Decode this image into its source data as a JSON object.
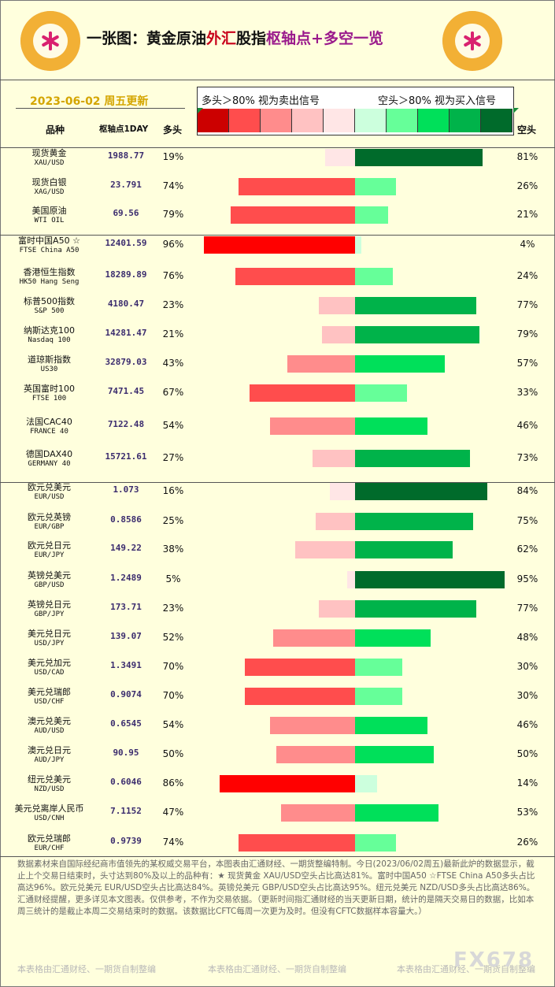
{
  "header": {
    "title_a": "一张图：黄金原油",
    "title_b": "外汇",
    "title_c": "股指",
    "title_d": "枢轴点+多空一览",
    "date": "2023-06-02 周五更新",
    "legend_left": "多头＞80% 视为卖出信号",
    "legend_right": "空头＞80% 视为买入信号",
    "col_name": "品种",
    "col_pivot": "枢轴点1DAY",
    "col_long": "多头",
    "col_short": "空头"
  },
  "colors": {
    "legend": [
      "#cc0000",
      "#ff4d4d",
      "#ff8c8c",
      "#ffc2c2",
      "#ffe6e6",
      "#ccffdd",
      "#66ff99",
      "#00e05a",
      "#00b34a",
      "#006b2b"
    ]
  },
  "chart_data": {
    "type": "bar",
    "series": [
      {
        "name": "多头",
        "key": "long"
      },
      {
        "name": "空头",
        "key": "short"
      }
    ],
    "items": [
      {
        "name": "现货黄金",
        "code": "XAU/USD",
        "pivot": "1988.77",
        "long": 19,
        "short": 81
      },
      {
        "name": "现货白银",
        "code": "XAG/USD",
        "pivot": "23.791",
        "long": 74,
        "short": 26
      },
      {
        "name": "美国原油",
        "code": "WTI OIL",
        "pivot": "69.56",
        "long": 79,
        "short": 21
      },
      {
        "name": "富时中国A50 ☆",
        "code": "FTSE China A50",
        "pivot": "12401.59",
        "long": 96,
        "short": 4
      },
      {
        "name": "香港恒生指数",
        "code": "HK50 Hang Seng",
        "pivot": "18289.89",
        "long": 76,
        "short": 24
      },
      {
        "name": "标普500指数",
        "code": "S&P 500",
        "pivot": "4180.47",
        "long": 23,
        "short": 77
      },
      {
        "name": "纳斯达克100",
        "code": "Nasdaq 100",
        "pivot": "14281.47",
        "long": 21,
        "short": 79
      },
      {
        "name": "道琼斯指数",
        "code": "US30",
        "pivot": "32879.03",
        "long": 43,
        "short": 57
      },
      {
        "name": "英国富时100",
        "code": "FTSE 100",
        "pivot": "7471.45",
        "long": 67,
        "short": 33
      },
      {
        "name": "法国CAC40",
        "code": "FRANCE 40",
        "pivot": "7122.48",
        "long": 54,
        "short": 46
      },
      {
        "name": "德国DAX40",
        "code": "GERMANY 40",
        "pivot": "15721.61",
        "long": 27,
        "short": 73
      },
      {
        "name": "欧元兑美元",
        "code": "EUR/USD",
        "pivot": "1.073",
        "long": 16,
        "short": 84
      },
      {
        "name": "欧元兑英镑",
        "code": "EUR/GBP",
        "pivot": "0.8586",
        "long": 25,
        "short": 75
      },
      {
        "name": "欧元兑日元",
        "code": "EUR/JPY",
        "pivot": "149.22",
        "long": 38,
        "short": 62
      },
      {
        "name": "英镑兑美元",
        "code": "GBP/USD",
        "pivot": "1.2489",
        "long": 5,
        "short": 95
      },
      {
        "name": "英镑兑日元",
        "code": "GBP/JPY",
        "pivot": "173.71",
        "long": 23,
        "short": 77
      },
      {
        "name": "美元兑日元",
        "code": "USD/JPY",
        "pivot": "139.07",
        "long": 52,
        "short": 48
      },
      {
        "name": "美元兑加元",
        "code": "USD/CAD",
        "pivot": "1.3491",
        "long": 70,
        "short": 30
      },
      {
        "name": "美元兑瑞郎",
        "code": "USD/CHF",
        "pivot": "0.9074",
        "long": 70,
        "short": 30
      },
      {
        "name": "澳元兑美元",
        "code": "AUD/USD",
        "pivot": "0.6545",
        "long": 54,
        "short": 46
      },
      {
        "name": "澳元兑日元",
        "code": "AUD/JPY",
        "pivot": "90.95",
        "long": 50,
        "short": 50
      },
      {
        "name": "纽元兑美元",
        "code": "NZD/USD",
        "pivot": "0.6046",
        "long": 86,
        "short": 14
      },
      {
        "name": "美元兑离岸人民币",
        "code": "USD/CNH",
        "pivot": "7.1152",
        "long": 47,
        "short": 53
      },
      {
        "name": "欧元兑瑞郎",
        "code": "EUR/CHF",
        "pivot": "0.9739",
        "long": 74,
        "short": 26
      }
    ]
  },
  "footer": {
    "note": "数据素材来自国际经纪商市值领先的某权威交易平台，本图表由汇通财经、一期货整编特制。今日(2023/06/02周五)最新此炉的数据显示，截止上个交易日结束时，头寸达到80%及以上的品种有：★ 现货黄金 XAU/USD空头占比高达81%。富时中国A50 ☆FTSE China A50多头占比高达96%。欧元兑美元 EUR/USD空头占比高达84%。英镑兑美元 GBP/USD空头占比高达95%。纽元兑美元 NZD/USD多头占比高达86%。汇通财经提醒，更多详见本文图表。仅供参考，不作为交易依据。（更新时间指汇通财经的当天更新日期，统计的是隔天交易日的数据，比如本周三统计的是截止本周二交易结束时的数据。该数据比CFTC每周一次更为及时。但没有CFTC数据样本容量大。）",
    "credit": "本表格由汇通财经、一期货自制整编",
    "watermark": "FX678"
  }
}
